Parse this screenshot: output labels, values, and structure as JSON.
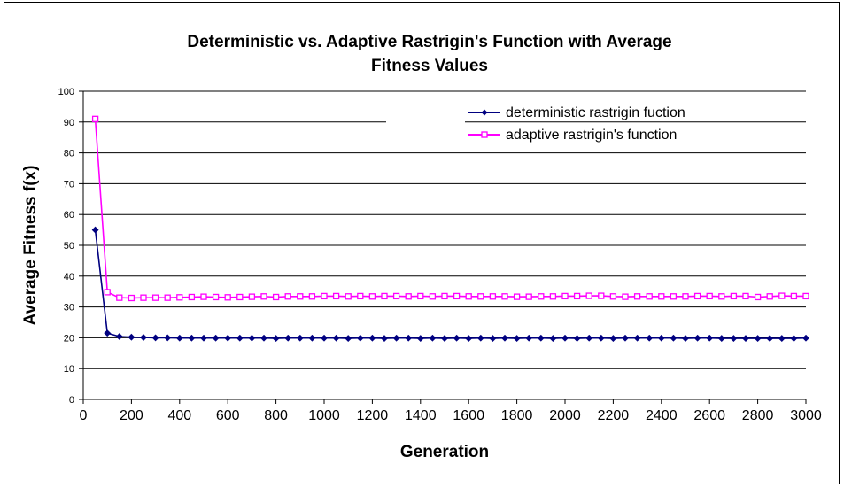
{
  "chart_data": {
    "type": "line",
    "title_line1": "Deterministic vs. Adaptive Rastrigin's Function with Average",
    "title_line2": "Fitness Values",
    "xlabel": "Generation",
    "ylabel": "Average Fitness f(x)",
    "xlim": [
      0,
      3000
    ],
    "ylim": [
      0,
      100
    ],
    "x_ticks": [
      "0",
      "200",
      "400",
      "600",
      "800",
      "1000",
      "1200",
      "1400",
      "1600",
      "1800",
      "2000",
      "2200",
      "2400",
      "2600",
      "2800",
      "3000"
    ],
    "y_ticks": [
      "0",
      "10",
      "20",
      "30",
      "40",
      "50",
      "60",
      "70",
      "80",
      "90",
      "100"
    ],
    "grid": "horizontal",
    "legend_position": "top-right",
    "x": [
      50,
      100,
      150,
      200,
      250,
      300,
      350,
      400,
      450,
      500,
      550,
      600,
      650,
      700,
      750,
      800,
      850,
      900,
      950,
      1000,
      1050,
      1100,
      1150,
      1200,
      1250,
      1300,
      1350,
      1400,
      1450,
      1500,
      1550,
      1600,
      1650,
      1700,
      1750,
      1800,
      1850,
      1900,
      1950,
      2000,
      2050,
      2100,
      2150,
      2200,
      2250,
      2300,
      2350,
      2400,
      2450,
      2500,
      2550,
      2600,
      2650,
      2700,
      2750,
      2800,
      2850,
      2900,
      2950,
      3000
    ],
    "series": [
      {
        "name": "deterministic rastrigin fuction",
        "color": "#000080",
        "marker": "diamond",
        "values": [
          55,
          21.5,
          20.4,
          20.2,
          20.1,
          20,
          20,
          19.9,
          19.9,
          19.9,
          19.9,
          19.9,
          19.9,
          19.9,
          19.9,
          19.8,
          19.9,
          19.9,
          19.9,
          19.9,
          19.9,
          19.8,
          19.9,
          19.9,
          19.8,
          19.9,
          19.9,
          19.8,
          19.9,
          19.8,
          19.9,
          19.8,
          19.9,
          19.8,
          19.9,
          19.8,
          19.9,
          19.9,
          19.8,
          19.9,
          19.8,
          19.9,
          19.9,
          19.8,
          19.9,
          19.9,
          19.9,
          19.9,
          19.9,
          19.8,
          19.9,
          19.9,
          19.8,
          19.8,
          19.8,
          19.8,
          19.8,
          19.8,
          19.8,
          19.9
        ]
      },
      {
        "name": "adaptive rastrigin's function",
        "color": "#ff00ff",
        "marker": "square",
        "values": [
          91,
          34.8,
          33,
          32.9,
          33,
          33,
          33,
          33.1,
          33.2,
          33.3,
          33.2,
          33.1,
          33.2,
          33.3,
          33.4,
          33.2,
          33.4,
          33.4,
          33.4,
          33.5,
          33.5,
          33.4,
          33.5,
          33.4,
          33.5,
          33.5,
          33.4,
          33.5,
          33.4,
          33.5,
          33.5,
          33.4,
          33.4,
          33.4,
          33.4,
          33.3,
          33.3,
          33.4,
          33.4,
          33.5,
          33.5,
          33.6,
          33.6,
          33.4,
          33.3,
          33.4,
          33.4,
          33.4,
          33.4,
          33.4,
          33.5,
          33.5,
          33.4,
          33.5,
          33.5,
          33.2,
          33.4,
          33.6,
          33.5,
          33.5
        ]
      }
    ]
  }
}
